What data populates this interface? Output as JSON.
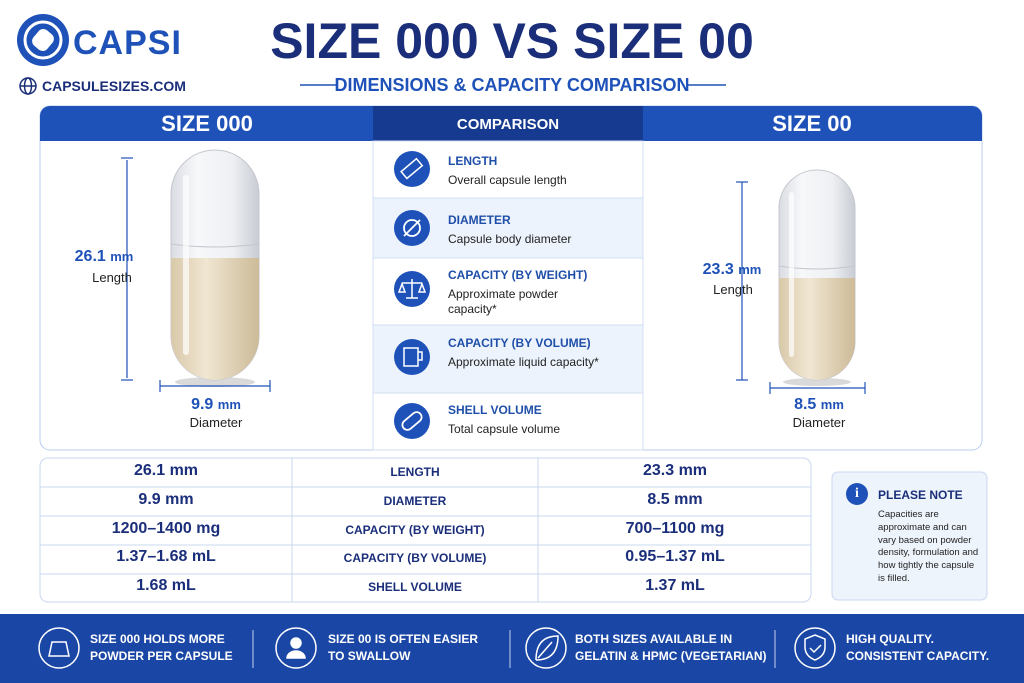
{
  "brand": {
    "name": "CAPSI",
    "website": "CAPSULESIZES.COM"
  },
  "header": {
    "title": "SIZE 000 VS SIZE 00",
    "subtitle": "DIMENSIONS & CAPACITY COMPARISON"
  },
  "left_panel": {
    "heading": "SIZE 000",
    "length": {
      "value": "26.1",
      "unit": "mm",
      "label": "Length"
    },
    "diameter": {
      "value": "9.9",
      "unit": "mm",
      "label": "Diameter"
    }
  },
  "comparison": {
    "heading": "COMPARISON",
    "items": [
      {
        "title": "LENGTH",
        "description": "Overall capsule length"
      },
      {
        "title": "DIAMETER",
        "description": "Capsule body diameter"
      },
      {
        "title": "CAPACITY (BY WEIGHT)",
        "description": "Approximate powder capacity*"
      },
      {
        "title": "CAPACITY (BY VOLUME)",
        "description": "Approximate liquid capacity*"
      },
      {
        "title": "SHELL VOLUME",
        "description": "Total capsule volume"
      }
    ]
  },
  "right_panel": {
    "heading": "SIZE 00",
    "length": {
      "value": "23.3",
      "unit": "mm",
      "label": "Length"
    },
    "diameter": {
      "value": "8.5",
      "unit": "mm",
      "label": "Diameter"
    }
  },
  "table": {
    "rows": [
      [
        "26.1 mm",
        "LENGTH",
        "23.3 mm"
      ],
      [
        "9.9 mm",
        "DIAMETER",
        "8.5 mm"
      ],
      [
        "1200–1400 mg",
        "CAPACITY (BY WEIGHT)",
        "700–1100 mg"
      ],
      [
        "1.37–1.68 mL",
        "CAPACITY (BY VOLUME)",
        "0.95–1.37 mL"
      ],
      [
        "1.68 mL",
        "SHELL VOLUME",
        "1.37 mL"
      ]
    ]
  },
  "note": {
    "icon": "i",
    "title": "PLEASE NOTE",
    "text": "Capacities are approximate and can vary based on powder density, formulation and how tightly the capsule is filled."
  },
  "footer": {
    "features": [
      [
        "SIZE 000 HOLDS MORE",
        "POWDER PER CAPSULE"
      ],
      [
        "SIZE 00 IS OFTEN EASIER",
        "TO SWALLOW"
      ],
      [
        "BOTH SIZES AVAILABLE IN",
        "GELATIN & HPMC (VEGETARIAN)"
      ],
      [
        "HIGH QUALITY.",
        "CONSISTENT CAPACITY."
      ]
    ]
  }
}
